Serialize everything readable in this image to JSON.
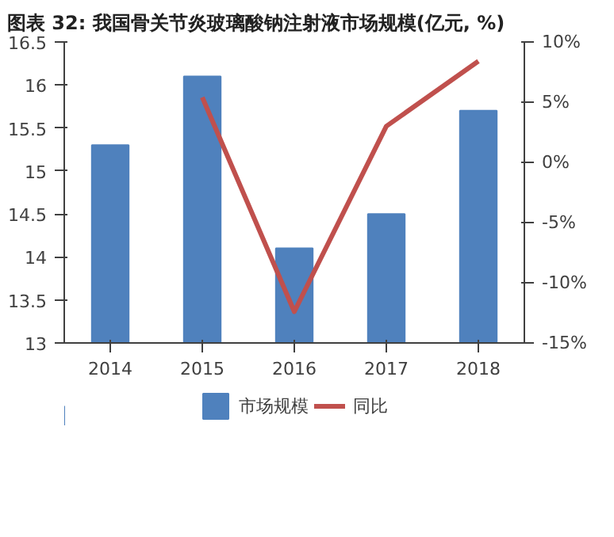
{
  "chart_data": {
    "type": "bar",
    "title": "图表 32: 我国骨关节炎玻璃酸钠注射液市场规模(亿元, %)",
    "categories": [
      "2014",
      "2015",
      "2016",
      "2017",
      "2018"
    ],
    "series": [
      {
        "name": "市场规模",
        "color": "#4f81bd",
        "values": [
          15.3,
          16.1,
          14.1,
          14.5,
          15.7
        ]
      },
      {
        "name": "同比",
        "type": "line",
        "axis": "y2",
        "color": "#c0504d",
        "values": [
          null,
          5.4,
          -12.4,
          3.0,
          8.4
        ]
      }
    ],
    "ylim": [
      13,
      16.5
    ],
    "yticks": [
      13,
      13.5,
      14,
      14.5,
      15,
      15.5,
      16,
      16.5
    ],
    "y2lim": [
      -15,
      10
    ],
    "y2ticks": [
      {
        "value": -15,
        "label": "-15%"
      },
      {
        "value": -10,
        "label": "-10%"
      },
      {
        "value": -5,
        "label": "-5%"
      },
      {
        "value": 0,
        "label": "0%"
      },
      {
        "value": 5,
        "label": "5%"
      },
      {
        "value": 10,
        "label": "10%"
      }
    ],
    "grid": false,
    "legend": "bottom",
    "marker": "none",
    "line_style": "solid"
  }
}
